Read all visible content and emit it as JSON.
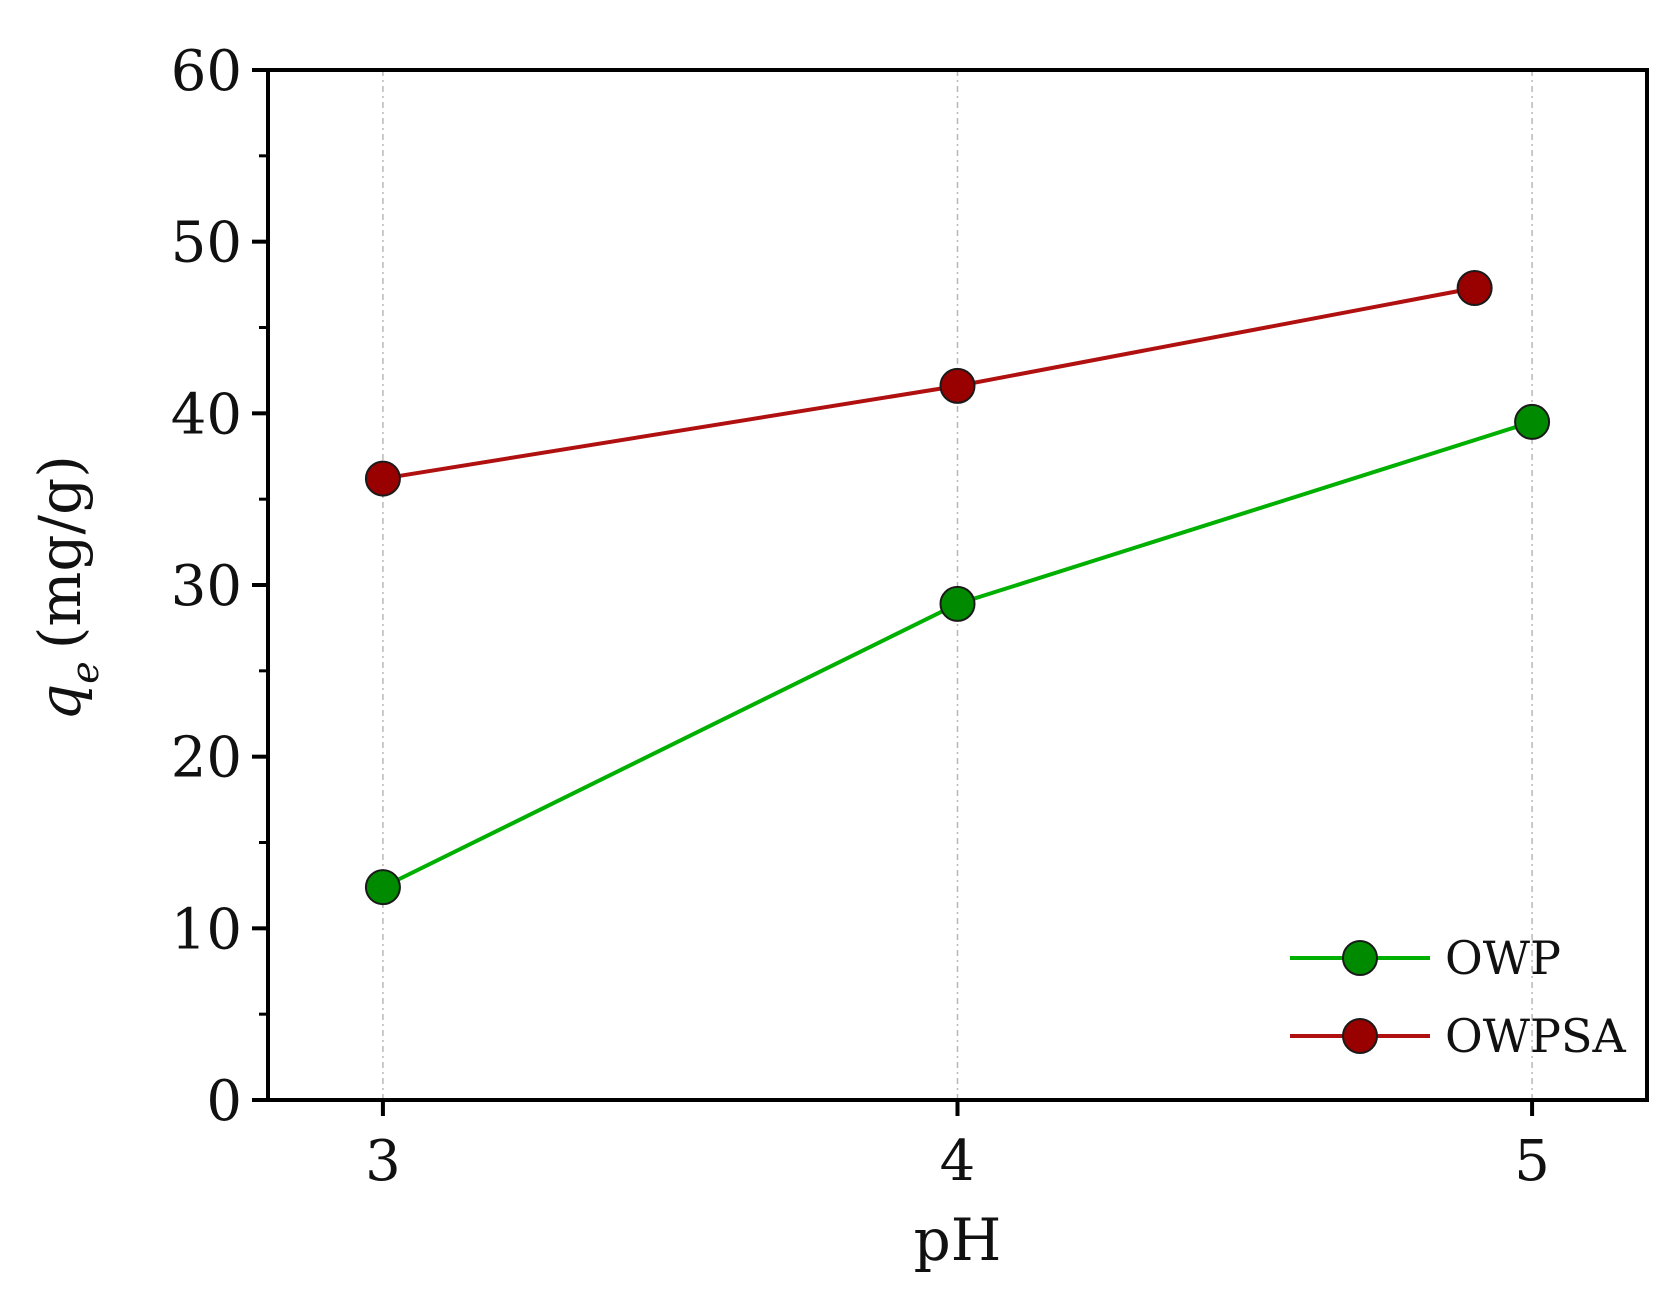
{
  "chart_data": {
    "type": "line",
    "x": [
      3,
      4,
      5
    ],
    "xlabel": "pH",
    "ylabel": {
      "symbol": "q",
      "subscript": "e",
      "unit": "(mg/g)"
    },
    "xlim": [
      2.8,
      5.2
    ],
    "ylim": [
      0,
      60
    ],
    "xticks": [
      3,
      4,
      5
    ],
    "yticks": [
      0,
      10,
      20,
      30,
      40,
      50,
      60
    ],
    "grid": "vertical dashed",
    "legend_position": "bottom-right",
    "series": [
      {
        "name": "OWP",
        "color": "#00b000",
        "marker_color": "#008a00",
        "points": [
          {
            "x": 3,
            "y": 12.4
          },
          {
            "x": 4,
            "y": 28.9
          },
          {
            "x": 5,
            "y": 39.5
          }
        ]
      },
      {
        "name": "OWPSA",
        "color": "#b01010",
        "marker_color": "#990000",
        "points": [
          {
            "x": 3,
            "y": 36.2
          },
          {
            "x": 4,
            "y": 41.6
          },
          {
            "x": 4.9,
            "y": 47.3
          }
        ]
      }
    ]
  }
}
